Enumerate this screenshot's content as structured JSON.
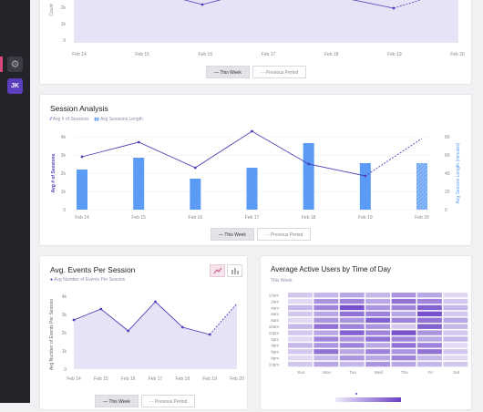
{
  "sidebar": {
    "gear_icon": "gear-icon",
    "avatar_initials": "JK"
  },
  "weekly_chart": {
    "y_ticks": [
      "2k",
      "1k",
      "0"
    ],
    "y_label": "Count",
    "x_ticks": [
      "Feb 14",
      "Feb 15",
      "Feb 16",
      "Feb 17",
      "Feb 18",
      "Feb 19",
      "Feb 20"
    ],
    "toggle_this_week": "This Week",
    "toggle_previous": "Previous Period"
  },
  "session": {
    "title": "Session Analysis",
    "legend_line": "Avg # of Sessions",
    "legend_bar": "Avg Sessions Length",
    "toggle_this_week": "This Week",
    "toggle_previous": "Previous Period"
  },
  "events": {
    "title": "Avg. Events Per Session",
    "legend": "Avg Number of Events Per Session",
    "toggle_this_week": "This Week",
    "toggle_previous": "Previous Period"
  },
  "heatmap": {
    "title": "Average Active Users by Time of Day",
    "subtitle": "This Week",
    "hours": [
      "12am",
      "2am",
      "4am",
      "6am",
      "8am",
      "10am",
      "12pm",
      "2pm",
      "4pm",
      "6pm",
      "8pm",
      "10pm"
    ],
    "days": [
      "Sun",
      "Mon",
      "Tue",
      "Wed",
      "Thu",
      "Fri",
      "Sat"
    ],
    "color_low": "#eeeaf9",
    "color_high": "#6a3fc6"
  },
  "chart_data": [
    {
      "type": "area",
      "categories": [
        "Feb 14",
        "Feb 15",
        "Feb 16",
        "Feb 17",
        "Feb 18",
        "Feb 19",
        "Feb 20"
      ],
      "ylabel": "Count",
      "ylim": [
        0,
        2000
      ],
      "series": [
        {
          "name": "This Week",
          "values": [
            null,
            null,
            2050,
            null,
            2120,
            1980,
            2500
          ]
        }
      ]
    },
    {
      "type": "bar",
      "title": "Session Analysis",
      "categories": [
        "Feb 14",
        "Feb 15",
        "Feb 16",
        "Feb 17",
        "Feb 18",
        "Feb 19",
        "Feb 20"
      ],
      "ylabel": "Avg # of Sessions",
      "y2label": "Avg Session Length (minutes)",
      "ylim": [
        0,
        4
      ],
      "y2lim": [
        0,
        80
      ],
      "y_ticks": [
        "0",
        "1k",
        "2k",
        "3k",
        "4k"
      ],
      "y2_ticks": [
        "0",
        "20",
        "40",
        "60",
        "80"
      ],
      "series": [
        {
          "name": "Avg # of Sessions",
          "values": [
            2900,
            3700,
            2300,
            4300,
            2500,
            1850,
            3900
          ]
        },
        {
          "name": "Avg Sessions Length",
          "values": [
            44,
            57,
            34,
            46,
            73,
            51,
            51
          ]
        }
      ]
    },
    {
      "type": "area",
      "title": "Avg. Events Per Session",
      "categories": [
        "Feb 14",
        "Feb 15",
        "Feb 16",
        "Feb 17",
        "Feb 18",
        "Feb 19",
        "Feb 20"
      ],
      "ylabel": "Avg Number of Events Per Session",
      "ylim": [
        0,
        4
      ],
      "y_ticks": [
        "0",
        "1k",
        "2k",
        "3k",
        "4k"
      ],
      "series": [
        {
          "name": "Avg Number of Events Per Session",
          "values": [
            2.7,
            3.3,
            2.1,
            3.7,
            2.3,
            1.9,
            3.6
          ]
        }
      ]
    },
    {
      "type": "heatmap",
      "title": "Average Active Users by Time of Day",
      "x": [
        "Sun",
        "Mon",
        "Tue",
        "Wed",
        "Thu",
        "Fri",
        "Sat"
      ],
      "y": [
        "12am",
        "2am",
        "4am",
        "6am",
        "8am",
        "10am",
        "12pm",
        "2pm",
        "4pm",
        "6pm",
        "8pm",
        "10pm"
      ],
      "values": [
        [
          0.2,
          0.3,
          0.4,
          0.3,
          0.5,
          0.4,
          0.1
        ],
        [
          0.1,
          0.5,
          0.6,
          0.4,
          0.7,
          0.6,
          0.2
        ],
        [
          0.3,
          0.6,
          0.9,
          0.5,
          0.6,
          0.8,
          0.3
        ],
        [
          0.2,
          0.4,
          0.7,
          0.6,
          0.4,
          0.9,
          0.2
        ],
        [
          0.1,
          0.5,
          0.5,
          0.8,
          0.6,
          0.7,
          0.4
        ],
        [
          0.3,
          0.7,
          0.6,
          0.5,
          0.2,
          0.8,
          0.3
        ],
        [
          0.2,
          0.4,
          0.8,
          0.6,
          0.9,
          0.5,
          0.2
        ],
        [
          0.1,
          0.6,
          0.5,
          0.7,
          0.6,
          0.4,
          0.3
        ],
        [
          0.3,
          0.5,
          0.6,
          0.4,
          0.7,
          0.6,
          0.1
        ],
        [
          0.2,
          0.7,
          0.4,
          0.6,
          0.5,
          0.7,
          0.2
        ],
        [
          0.1,
          0.3,
          0.5,
          0.4,
          0.6,
          0.3,
          0.1
        ],
        [
          0.2,
          0.4,
          0.3,
          0.5,
          0.4,
          0.3,
          0.2
        ]
      ]
    }
  ]
}
